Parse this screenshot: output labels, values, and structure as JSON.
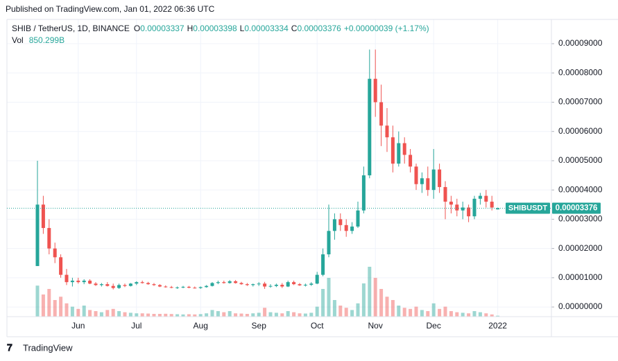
{
  "published": "Published on TradingView.com, Jan 01, 2022 06:36 UTC",
  "brand": "TradingView",
  "legend": {
    "symbol": "SHIB / TetherUS, 1D, BINANCE",
    "o": "O",
    "h": "H",
    "l": "L",
    "c": "C",
    "change": "+0.00000039 (+1.17%)",
    "vol": "Vol",
    "vol_value": "850.299B"
  },
  "chart_data": {
    "type": "candlestick",
    "symbol_tag": "SHIBUSDT",
    "up_color": "#26a69a",
    "down_color": "#ef5350",
    "categories": [
      null,
      null,
      null,
      null,
      null,
      null,
      null,
      "Jun",
      null,
      null,
      null,
      null,
      null,
      null,
      null,
      null,
      null,
      "Jul",
      null,
      null,
      null,
      null,
      null,
      null,
      null,
      null,
      null,
      null,
      "Aug",
      null,
      null,
      null,
      null,
      null,
      null,
      null,
      null,
      null,
      "Sep",
      null,
      null,
      null,
      null,
      null,
      null,
      null,
      null,
      null,
      "Oct",
      null,
      null,
      null,
      null,
      null,
      null,
      null,
      null,
      null,
      "Nov",
      null,
      null,
      null,
      null,
      null,
      null,
      null,
      null,
      null,
      "Dec",
      null,
      null,
      null,
      null,
      null,
      null,
      null,
      null,
      null,
      null,
      "2022"
    ],
    "open": [
      1.4e-05,
      3.5e-05,
      2.7e-05,
      2e-05,
      1.7e-05,
      1.1e-05,
      8.5e-06,
      9e-06,
      8.5e-06,
      9e-06,
      8e-06,
      7.5e-06,
      7.8e-06,
      7.2e-06,
      6.5e-06,
      7.5e-06,
      7.2e-06,
      8e-06,
      8.5e-06,
      8.2e-06,
      7.8e-06,
      7.5e-06,
      7e-06,
      6.8e-06,
      6.6e-06,
      6.7e-06,
      6.9e-06,
      6.6e-06,
      6.5e-06,
      6.8e-06,
      7.2e-06,
      8.2e-06,
      8.5e-06,
      8.2e-06,
      8.8e-06,
      8.2e-06,
      7.8e-06,
      7.5e-06,
      7.8e-06,
      8e-06,
      7e-06,
      7.2e-06,
      7.6e-06,
      7e-06,
      8.5e-06,
      7.8e-06,
      7.4e-06,
      7.6e-06,
      8e-06,
      1.1e-05,
      1.8e-05,
      2.6e-05,
      3e-05,
      2.8e-05,
      2.6e-05,
      2.75e-05,
      3.3e-05,
      4.5e-05,
      7.8e-05,
      7e-05,
      6.2e-05,
      5.8e-05,
      4.9e-05,
      5.6e-05,
      5.2e-05,
      4.8e-05,
      4.2e-05,
      4.4e-05,
      4e-05,
      4.7e-05,
      4.1e-05,
      3.6e-05,
      3.5e-05,
      3.3e-05,
      3.4e-05,
      3.1e-05,
      3.7e-05,
      3.8e-05,
      3.6e-05,
      3.337e-05
    ],
    "high": [
      5e-05,
      3.8e-05,
      3e-05,
      2.2e-05,
      1.8e-05,
      1.3e-05,
      1e-05,
      1e-05,
      9.5e-06,
      9.5e-06,
      8.5e-06,
      8.2e-06,
      8.5e-06,
      8e-06,
      8e-06,
      8e-06,
      8.2e-06,
      8.8e-06,
      9e-06,
      8.6e-06,
      8.2e-06,
      7.8e-06,
      7.4e-06,
      7.2e-06,
      7e-06,
      7.2e-06,
      7.2e-06,
      7e-06,
      7e-06,
      7.5e-06,
      8.5e-06,
      9e-06,
      9e-06,
      9.2e-06,
      9.2e-06,
      8.6e-06,
      8.2e-06,
      8e-06,
      8.5e-06,
      8.6e-06,
      7.8e-06,
      8e-06,
      8.2e-06,
      9e-06,
      9e-06,
      8.2e-06,
      8e-06,
      8.5e-06,
      1.2e-05,
      2e-05,
      3.5e-05,
      3.2e-05,
      3.2e-05,
      3e-05,
      2.9e-05,
      3.6e-05,
      4.8e-05,
      8.8e-05,
      8.8e-05,
      7.6e-05,
      6.8e-05,
      6.2e-05,
      6e-05,
      5.8e-05,
      5.4e-05,
      4.9e-05,
      4.6e-05,
      4.8e-05,
      5.4e-05,
      4.9e-05,
      4.3e-05,
      3.8e-05,
      3.7e-05,
      3.6e-05,
      3.5e-05,
      3.8e-05,
      3.9e-05,
      4e-05,
      3.8e-05,
      3.398e-05
    ],
    "low": [
      1.4e-05,
      2.5e-05,
      1.8e-05,
      1.5e-05,
      1e-05,
      7.5e-06,
      7e-06,
      8e-06,
      7.8e-06,
      7.8e-06,
      7.2e-06,
      7e-06,
      7e-06,
      6e-06,
      6.2e-06,
      6.8e-06,
      7e-06,
      7.5e-06,
      8e-06,
      7.6e-06,
      7.2e-06,
      6.8e-06,
      6.6e-06,
      6.4e-06,
      6.2e-06,
      6.4e-06,
      6.4e-06,
      6.3e-06,
      6.2e-06,
      6.6e-06,
      7e-06,
      7.8e-06,
      8e-06,
      8e-06,
      8e-06,
      7.6e-06,
      7.2e-06,
      7e-06,
      7.2e-06,
      6.2e-06,
      6.6e-06,
      6.8e-06,
      6.5e-06,
      6.8e-06,
      7.5e-06,
      7.2e-06,
      7e-06,
      7.2e-06,
      7.8e-06,
      1.05e-05,
      1.7e-05,
      2.3e-05,
      2.6e-05,
      2.4e-05,
      2.5e-05,
      2.7e-05,
      3.2e-05,
      4.4e-05,
      6.5e-05,
      5.5e-05,
      5.3e-05,
      4.6e-05,
      4.8e-05,
      4.9e-05,
      4.6e-05,
      4e-05,
      3.9e-05,
      3.8e-05,
      3.7e-05,
      3.9e-05,
      3e-05,
      3.2e-05,
      3.1e-05,
      3e-05,
      2.9e-05,
      3e-05,
      3.5e-05,
      3.4e-05,
      3.3e-05,
      3.334e-05
    ],
    "close": [
      3.5e-05,
      2.7e-05,
      2e-05,
      1.7e-05,
      1.1e-05,
      8.5e-06,
      9e-06,
      8.5e-06,
      9e-06,
      8e-06,
      7.5e-06,
      7.8e-06,
      7.2e-06,
      6.5e-06,
      7.5e-06,
      7.2e-06,
      8e-06,
      8.5e-06,
      8.2e-06,
      7.8e-06,
      7.5e-06,
      7e-06,
      6.8e-06,
      6.6e-06,
      6.7e-06,
      6.9e-06,
      6.6e-06,
      6.5e-06,
      6.8e-06,
      7.2e-06,
      8.2e-06,
      8.5e-06,
      8.2e-06,
      8.8e-06,
      8.2e-06,
      7.8e-06,
      7.5e-06,
      7.8e-06,
      8e-06,
      7e-06,
      7.2e-06,
      7.6e-06,
      7e-06,
      8.5e-06,
      7.8e-06,
      7.4e-06,
      7.6e-06,
      8e-06,
      1.1e-05,
      1.8e-05,
      2.6e-05,
      3e-05,
      2.8e-05,
      2.6e-05,
      2.75e-05,
      3.3e-05,
      4.5e-05,
      7.8e-05,
      7e-05,
      6.2e-05,
      5.8e-05,
      4.9e-05,
      5.6e-05,
      5.2e-05,
      4.8e-05,
      4.2e-05,
      4.4e-05,
      4e-05,
      4.7e-05,
      4.1e-05,
      3.6e-05,
      3.5e-05,
      3.3e-05,
      3.4e-05,
      3.1e-05,
      3.7e-05,
      3.8e-05,
      3.6e-05,
      3.4e-05,
      3.376e-05
    ],
    "volume": [
      28000,
      20000,
      25000,
      15000,
      18000,
      12000,
      9000,
      7000,
      10000,
      6000,
      5000,
      4000,
      6000,
      7000,
      5000,
      4000,
      3500,
      3000,
      3000,
      2800,
      2500,
      2500,
      2600,
      2400,
      2200,
      2000,
      2200,
      2000,
      2300,
      3000,
      6000,
      5000,
      4000,
      5000,
      3000,
      2800,
      2500,
      3000,
      3500,
      8000,
      4000,
      3500,
      3000,
      5000,
      4000,
      3000,
      2800,
      3500,
      9000,
      25000,
      35000,
      15000,
      10000,
      8000,
      6000,
      12000,
      30000,
      45000,
      35000,
      25000,
      18000,
      15000,
      10000,
      8000,
      7000,
      9000,
      6000,
      5000,
      12000,
      7000,
      9000,
      5000,
      4000,
      3500,
      3000,
      5000,
      4000,
      3000,
      2000,
      850.299
    ],
    "vlim": [
      0,
      45000
    ],
    "ylim": [
      -3.3e-06,
      9.83e-05
    ],
    "yticks": [
      {
        "value": 0,
        "label": "0.00000000"
      },
      {
        "value": 1e-05,
        "label": "0.00001000"
      },
      {
        "value": 2e-05,
        "label": "0.00002000"
      },
      {
        "value": 3e-05,
        "label": "0.00003000"
      },
      {
        "value": 4e-05,
        "label": "0.00004000"
      },
      {
        "value": 5e-05,
        "label": "0.00005000"
      },
      {
        "value": 6e-05,
        "label": "0.00006000"
      },
      {
        "value": 7e-05,
        "label": "0.00007000"
      },
      {
        "value": 8e-05,
        "label": "0.00008000"
      },
      {
        "value": 9e-05,
        "label": "0.00009000"
      }
    ],
    "grid": true
  }
}
